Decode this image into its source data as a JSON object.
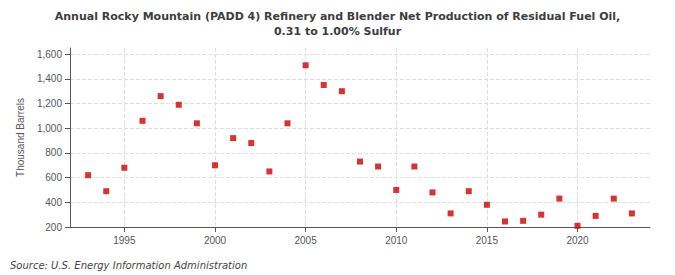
{
  "chart_data": {
    "type": "scatter",
    "title": "Annual Rocky Mountain (PADD 4) Refinery and Blender Net Production of Residual Fuel Oil,\n0.31 to 1.00% Sulfur",
    "ylabel": "Thousand Barrels",
    "source": "Source: U.S. Energy Information Administration",
    "x": [
      1993,
      1994,
      1995,
      1996,
      1997,
      1998,
      1999,
      2000,
      2001,
      2002,
      2003,
      2004,
      2005,
      2006,
      2007,
      2008,
      2009,
      2010,
      2011,
      2012,
      2013,
      2014,
      2015,
      2016,
      2017,
      2018,
      2019,
      2020,
      2021,
      2022,
      2023
    ],
    "values": [
      620,
      490,
      680,
      1060,
      1260,
      1190,
      1040,
      700,
      920,
      880,
      650,
      1040,
      1510,
      1350,
      1300,
      730,
      690,
      500,
      690,
      480,
      310,
      490,
      380,
      245,
      250,
      300,
      430,
      210,
      290,
      430,
      310
    ],
    "color": "#cc0000",
    "marker": "square",
    "xlim": [
      1992,
      2024
    ],
    "xticks": [
      1995,
      2000,
      2005,
      2010,
      2015,
      2020
    ],
    "ylim": [
      200,
      1650
    ],
    "yticks": [
      200,
      400,
      600,
      800,
      {
        "value": 1000,
        "label": "1,000"
      },
      {
        "value": 1200,
        "label": "1,200"
      },
      {
        "value": 1400,
        "label": "1,400"
      },
      {
        "value": 1600,
        "label": "1,600"
      }
    ],
    "grid": true
  }
}
